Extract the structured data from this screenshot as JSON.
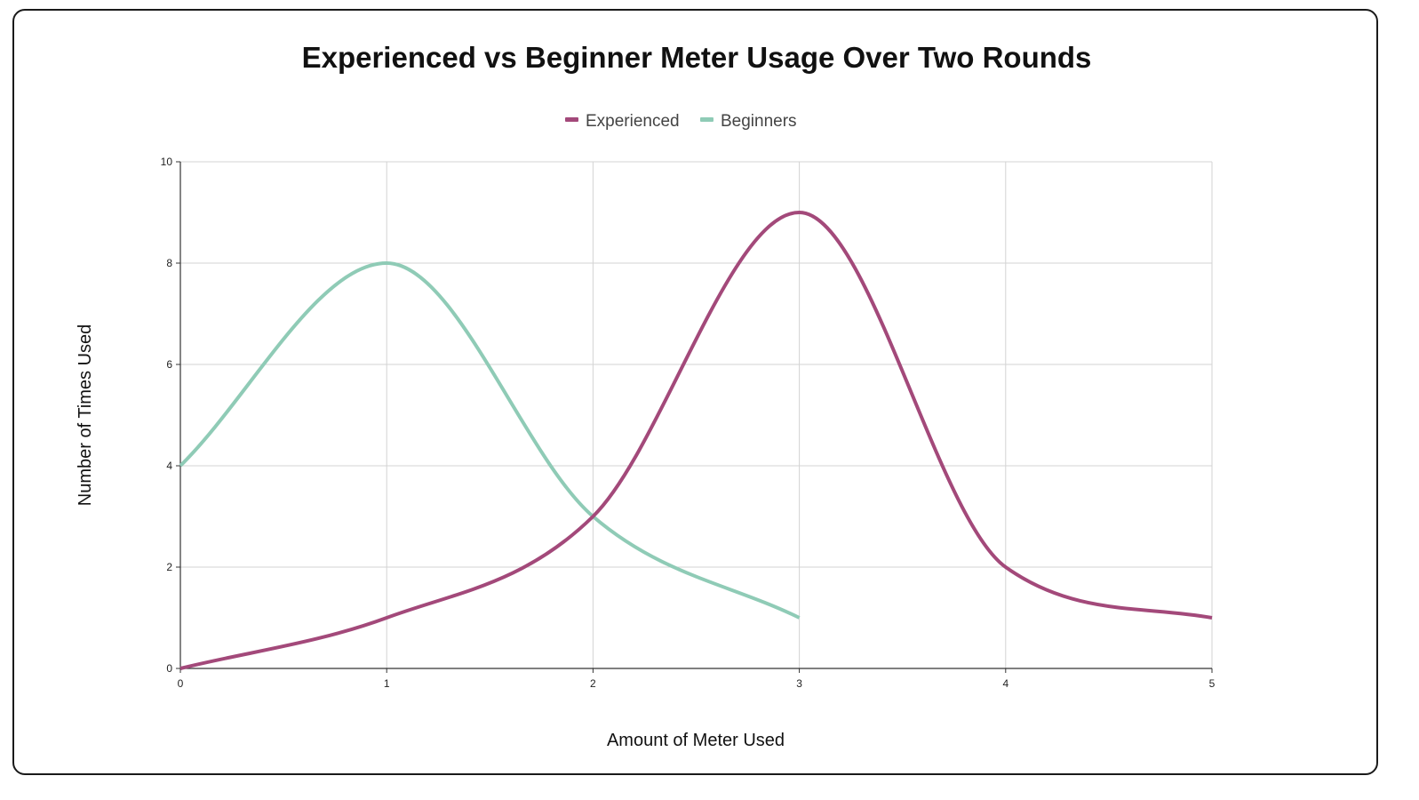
{
  "chart_data": {
    "type": "line",
    "title": "Experienced vs Beginner Meter Usage Over Two Rounds",
    "xlabel": "Amount of Meter Used",
    "ylabel": "Number of Times Used",
    "xlim": [
      0,
      5
    ],
    "ylim": [
      0,
      10
    ],
    "x_ticks": [
      "0",
      "1",
      "2",
      "3",
      "4",
      "5"
    ],
    "y_ticks": [
      "0",
      "2",
      "4",
      "6",
      "8",
      "10"
    ],
    "grid": true,
    "legend_position": "top-center",
    "smooth": true,
    "series": [
      {
        "name": "Experienced",
        "color": "#a3497a",
        "x": [
          0,
          1,
          2,
          3,
          4,
          5
        ],
        "values": [
          0,
          1,
          3,
          9,
          2,
          1
        ]
      },
      {
        "name": "Beginners",
        "color": "#8fcbb6",
        "x": [
          0,
          1,
          2,
          3
        ],
        "values": [
          4,
          8,
          3,
          1
        ]
      }
    ]
  }
}
